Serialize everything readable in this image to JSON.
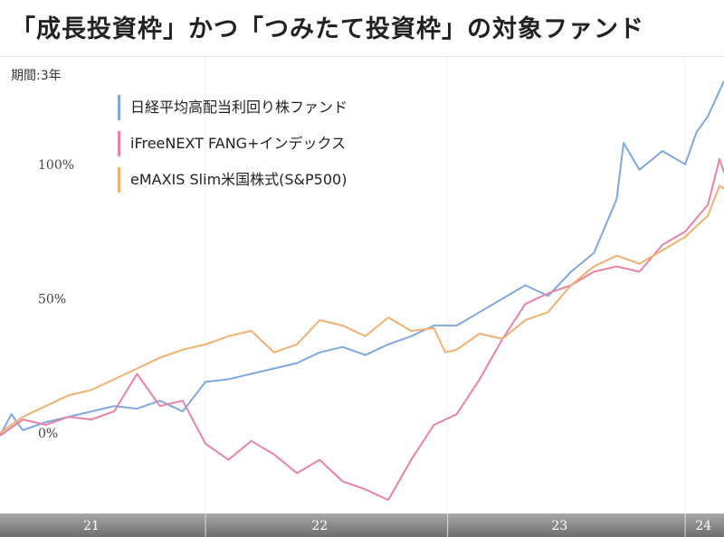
{
  "page": {
    "title": "「成長投資枠」かつ「つみたて投資枠」の対象ファンド"
  },
  "chart_data": {
    "type": "line",
    "period_label": "期間:3年",
    "yticks": [
      "0%",
      "50%",
      "100%"
    ],
    "ylim": [
      -30,
      140
    ],
    "xlim": [
      2021.0,
      2024.17
    ],
    "xticks": [
      {
        "label": "21",
        "x": 2021.4
      },
      {
        "label": "22",
        "x": 2022.4
      },
      {
        "label": "23",
        "x": 2023.45
      },
      {
        "label": "24",
        "x": 2024.08
      }
    ],
    "year_boundaries": [
      2021.9,
      2022.96,
      2024.0
    ],
    "legend_position": "top-left",
    "grid": false,
    "series": [
      {
        "name": "日経平均高配当利回り株ファンド",
        "color": "#7fa7e0",
        "points": [
          [
            2021.0,
            -1
          ],
          [
            2021.05,
            7
          ],
          [
            2021.1,
            1
          ],
          [
            2021.2,
            4
          ],
          [
            2021.3,
            6
          ],
          [
            2021.4,
            8
          ],
          [
            2021.5,
            10
          ],
          [
            2021.6,
            9
          ],
          [
            2021.7,
            12
          ],
          [
            2021.8,
            8
          ],
          [
            2021.9,
            19
          ],
          [
            2022.0,
            20
          ],
          [
            2022.1,
            22
          ],
          [
            2022.2,
            24
          ],
          [
            2022.3,
            26
          ],
          [
            2022.4,
            30
          ],
          [
            2022.5,
            32
          ],
          [
            2022.6,
            29
          ],
          [
            2022.7,
            33
          ],
          [
            2022.8,
            36
          ],
          [
            2022.9,
            40
          ],
          [
            2023.0,
            40
          ],
          [
            2023.1,
            45
          ],
          [
            2023.2,
            50
          ],
          [
            2023.3,
            55
          ],
          [
            2023.4,
            51
          ],
          [
            2023.5,
            60
          ],
          [
            2023.6,
            67
          ],
          [
            2023.7,
            87
          ],
          [
            2023.73,
            108
          ],
          [
            2023.8,
            98
          ],
          [
            2023.9,
            105
          ],
          [
            2024.0,
            100
          ],
          [
            2024.05,
            112
          ],
          [
            2024.1,
            118
          ],
          [
            2024.17,
            131
          ]
        ]
      },
      {
        "name": "iFreeNEXT FANG+インデックス",
        "color": "#e882a6",
        "points": [
          [
            2021.0,
            -1
          ],
          [
            2021.1,
            5
          ],
          [
            2021.2,
            3
          ],
          [
            2021.3,
            6
          ],
          [
            2021.4,
            5
          ],
          [
            2021.5,
            8
          ],
          [
            2021.6,
            22
          ],
          [
            2021.7,
            10
          ],
          [
            2021.8,
            12
          ],
          [
            2021.9,
            -4
          ],
          [
            2022.0,
            -10
          ],
          [
            2022.1,
            -3
          ],
          [
            2022.2,
            -8
          ],
          [
            2022.3,
            -15
          ],
          [
            2022.4,
            -10
          ],
          [
            2022.5,
            -18
          ],
          [
            2022.6,
            -21
          ],
          [
            2022.7,
            -25
          ],
          [
            2022.8,
            -10
          ],
          [
            2022.9,
            3
          ],
          [
            2023.0,
            7
          ],
          [
            2023.1,
            20
          ],
          [
            2023.2,
            35
          ],
          [
            2023.3,
            48
          ],
          [
            2023.4,
            52
          ],
          [
            2023.5,
            55
          ],
          [
            2023.6,
            60
          ],
          [
            2023.7,
            62
          ],
          [
            2023.8,
            60
          ],
          [
            2023.9,
            70
          ],
          [
            2024.0,
            75
          ],
          [
            2024.1,
            85
          ],
          [
            2024.15,
            102
          ],
          [
            2024.17,
            97
          ]
        ]
      },
      {
        "name": "eMAXIS Slim米国株式(S&P500)",
        "color": "#f0b070",
        "points": [
          [
            2021.0,
            0
          ],
          [
            2021.1,
            6
          ],
          [
            2021.2,
            10
          ],
          [
            2021.3,
            14
          ],
          [
            2021.4,
            16
          ],
          [
            2021.5,
            20
          ],
          [
            2021.6,
            24
          ],
          [
            2021.7,
            28
          ],
          [
            2021.8,
            31
          ],
          [
            2021.9,
            33
          ],
          [
            2022.0,
            36
          ],
          [
            2022.1,
            38
          ],
          [
            2022.2,
            30
          ],
          [
            2022.3,
            33
          ],
          [
            2022.4,
            42
          ],
          [
            2022.5,
            40
          ],
          [
            2022.6,
            36
          ],
          [
            2022.7,
            43
          ],
          [
            2022.8,
            38
          ],
          [
            2022.9,
            39
          ],
          [
            2022.95,
            30
          ],
          [
            2023.0,
            31
          ],
          [
            2023.1,
            37
          ],
          [
            2023.2,
            35
          ],
          [
            2023.3,
            42
          ],
          [
            2023.4,
            45
          ],
          [
            2023.5,
            55
          ],
          [
            2023.6,
            62
          ],
          [
            2023.7,
            66
          ],
          [
            2023.8,
            63
          ],
          [
            2023.9,
            68
          ],
          [
            2024.0,
            73
          ],
          [
            2024.1,
            81
          ],
          [
            2024.15,
            92
          ],
          [
            2024.17,
            91
          ]
        ]
      }
    ]
  }
}
